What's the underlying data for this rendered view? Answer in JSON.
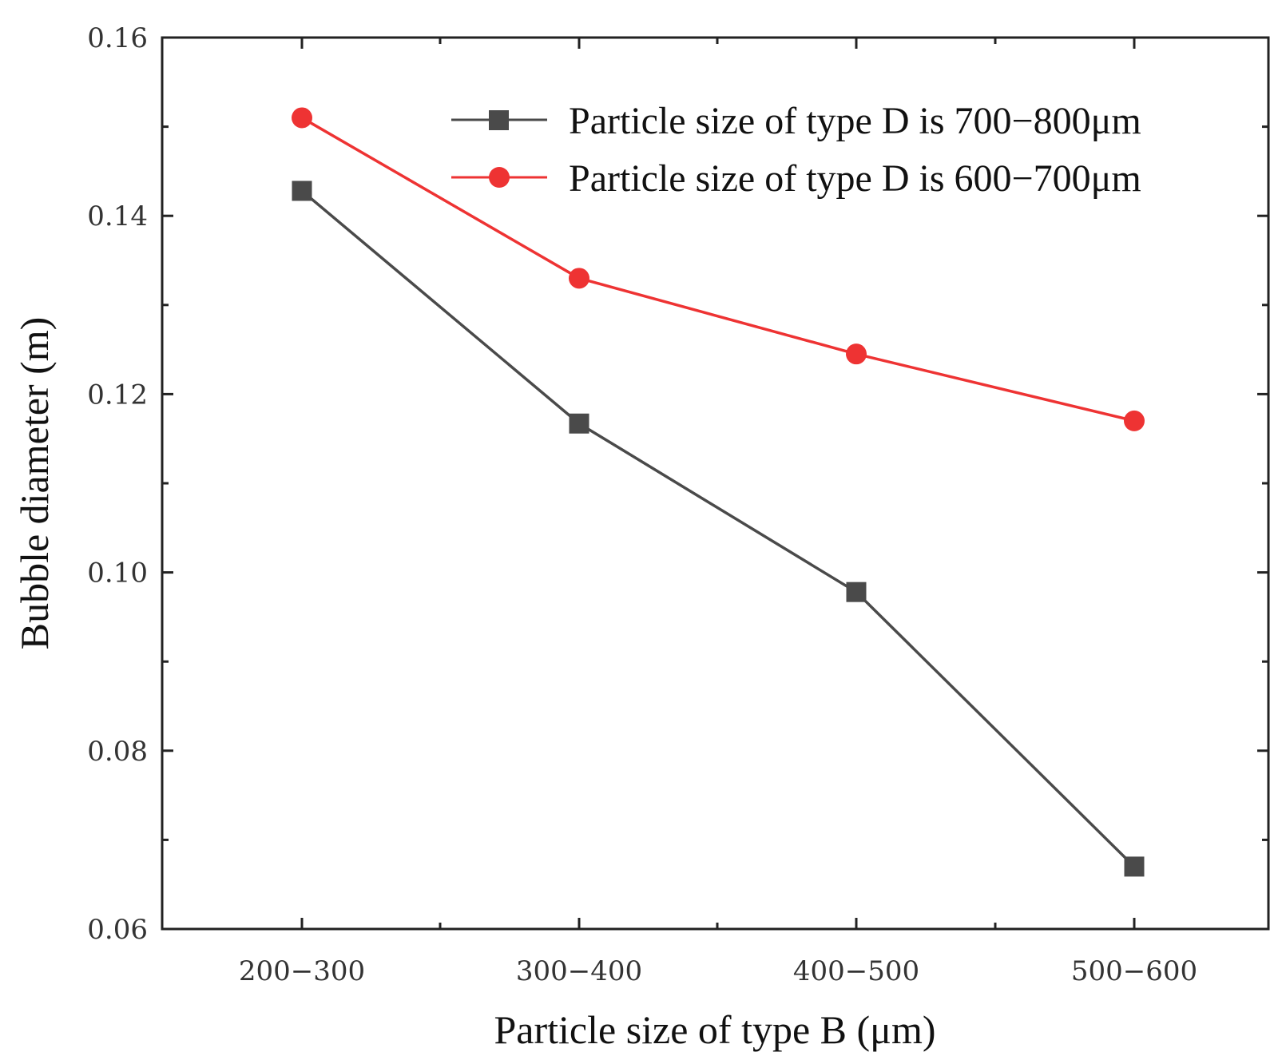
{
  "chart_data": {
    "type": "line",
    "title": "",
    "xlabel": "Particle size of type B (μm)",
    "ylabel": "Bubble diameter (m)",
    "categories": [
      "200−300",
      "300−400",
      "400−500",
      "500−600"
    ],
    "ylim": [
      0.06,
      0.16
    ],
    "yticks": [
      "0.06",
      "0.08",
      "0.10",
      "0.12",
      "0.14",
      "0.16"
    ],
    "ytick_values": [
      0.06,
      0.08,
      0.1,
      0.12,
      0.14,
      0.16
    ],
    "grid": false,
    "legend_position": "top-right",
    "series": [
      {
        "name": "Particle size of type D is 700−800μm",
        "marker": "square",
        "color": "#4a4a4a",
        "values": [
          0.1428,
          0.1167,
          0.0978,
          0.067
        ]
      },
      {
        "name": "Particle size of type D is 600−700μm",
        "marker": "circle",
        "color": "#ee3333",
        "values": [
          0.151,
          0.133,
          0.1245,
          0.117
        ]
      }
    ]
  }
}
